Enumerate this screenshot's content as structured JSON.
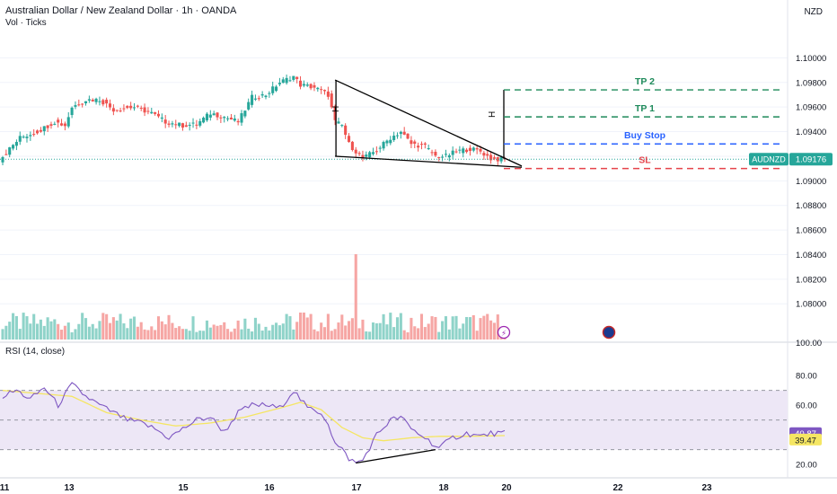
{
  "header": {
    "title": "Australian Dollar / New Zealand Dollar · 1h · OANDA",
    "subtitle": "Vol · Ticks",
    "currency": "NZD"
  },
  "colors": {
    "up": "#26a69a",
    "down": "#ef5350",
    "vol_up": "#8fd3c9",
    "vol_down": "#f6a6a4",
    "target": "#1e8a5a",
    "buy_stop": "#2962ff",
    "stop_loss": "#e5434b",
    "rsi_line": "#7e57c2",
    "rsi_ma": "#f5e663",
    "rsi_band": "#ede7f6",
    "grid": "#f0f3fa"
  },
  "chart_data": [
    {
      "type": "candlestick",
      "symbol": "AUDNZD",
      "last_price": "1.09176",
      "y_ticks": [
        "1.10000",
        "1.09800",
        "1.09600",
        "1.09400",
        "1.09200",
        "1.09000",
        "1.08800",
        "1.08600",
        "1.08400",
        "1.08200",
        "1.08000"
      ],
      "ylim": [
        1.0787,
        1.1012
      ],
      "x_ticks": [
        "11",
        "13",
        "15",
        "16",
        "17",
        "18",
        "20",
        "22",
        "23"
      ],
      "close_anchors": [
        [
          0,
          1.092
        ],
        [
          5,
          1.0935
        ],
        [
          10,
          1.094
        ],
        [
          15,
          1.0948
        ],
        [
          18,
          1.0945
        ],
        [
          20,
          1.096
        ],
        [
          24,
          1.0966
        ],
        [
          28,
          1.0966
        ],
        [
          32,
          1.0958
        ],
        [
          38,
          1.096
        ],
        [
          43,
          1.0955
        ],
        [
          47,
          1.0948
        ],
        [
          52,
          1.0945
        ],
        [
          56,
          1.0946
        ],
        [
          60,
          1.0955
        ],
        [
          64,
          1.0952
        ],
        [
          68,
          1.0948
        ],
        [
          72,
          1.0968
        ],
        [
          76,
          1.097
        ],
        [
          80,
          1.098
        ],
        [
          84,
          1.0985
        ],
        [
          86,
          1.0978
        ],
        [
          90,
          1.0976
        ],
        [
          94,
          1.097
        ],
        [
          96,
          1.0948
        ],
        [
          98,
          1.0945
        ],
        [
          100,
          1.093
        ],
        [
          104,
          1.0918
        ],
        [
          108,
          1.0925
        ],
        [
          112,
          1.0935
        ],
        [
          115,
          1.094
        ],
        [
          118,
          1.093
        ],
        [
          122,
          1.0928
        ],
        [
          125,
          1.092
        ],
        [
          128,
          1.092
        ],
        [
          131,
          1.0924
        ],
        [
          135,
          1.0926
        ],
        [
          138,
          1.0924
        ],
        [
          141,
          1.0918
        ],
        [
          145,
          1.0917
        ]
      ],
      "volume_range": [
        0,
        1.0
      ],
      "annotations": {
        "tp2": {
          "label": "TP 2",
          "price": 1.0974
        },
        "tp1": {
          "label": "TP 1",
          "price": 1.0952
        },
        "buy_stop": {
          "label": "Buy Stop",
          "price": 1.093
        },
        "sl": {
          "label": "SL",
          "price": 1.091
        },
        "height_marker": "H"
      }
    },
    {
      "type": "line",
      "title": "RSI (14, close)",
      "y_ticks": [
        "80.00",
        "60.00",
        "40.00",
        "20.00"
      ],
      "ylim": [
        14,
        88
      ],
      "bands": [
        30,
        50,
        70
      ],
      "last_rsi": "40.87",
      "last_ma": "39.47",
      "rsi_anchors": [
        [
          0,
          66
        ],
        [
          4,
          70
        ],
        [
          8,
          64
        ],
        [
          12,
          72
        ],
        [
          16,
          60
        ],
        [
          20,
          74
        ],
        [
          24,
          66
        ],
        [
          28,
          60
        ],
        [
          32,
          55
        ],
        [
          36,
          50
        ],
        [
          40,
          48
        ],
        [
          44,
          44
        ],
        [
          48,
          38
        ],
        [
          52,
          44
        ],
        [
          56,
          50
        ],
        [
          60,
          52
        ],
        [
          64,
          42
        ],
        [
          68,
          55
        ],
        [
          72,
          60
        ],
        [
          76,
          60
        ],
        [
          80,
          58
        ],
        [
          84,
          70
        ],
        [
          88,
          58
        ],
        [
          92,
          55
        ],
        [
          94,
          48
        ],
        [
          96,
          34
        ],
        [
          98,
          30
        ],
        [
          100,
          24
        ],
        [
          102,
          21
        ],
        [
          104,
          23
        ],
        [
          108,
          40
        ],
        [
          112,
          50
        ],
        [
          115,
          52
        ],
        [
          118,
          44
        ],
        [
          122,
          38
        ],
        [
          126,
          31
        ],
        [
          130,
          38
        ],
        [
          134,
          41
        ],
        [
          138,
          39
        ],
        [
          141,
          41
        ],
        [
          145,
          40.9
        ]
      ],
      "ma_anchors": [
        [
          0,
          70
        ],
        [
          10,
          68
        ],
        [
          20,
          66
        ],
        [
          30,
          55
        ],
        [
          40,
          50
        ],
        [
          50,
          46
        ],
        [
          60,
          48
        ],
        [
          70,
          52
        ],
        [
          80,
          58
        ],
        [
          86,
          62
        ],
        [
          92,
          57
        ],
        [
          98,
          45
        ],
        [
          104,
          38
        ],
        [
          110,
          36
        ],
        [
          118,
          38
        ],
        [
          126,
          39
        ],
        [
          134,
          39
        ],
        [
          145,
          39.5
        ]
      ]
    }
  ]
}
